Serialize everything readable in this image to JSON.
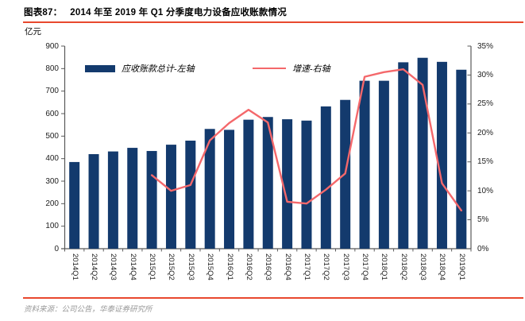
{
  "figure": {
    "label": "图表87：",
    "title": "2014 年至 2019 年 Q1 分季度电力设备应收账款情况",
    "unit_label": "亿元",
    "source": "资料来源：公司公告，华泰证券研究所",
    "accent_red": "#E8482E"
  },
  "chart_data": {
    "type": "bar",
    "subtype": "bar+line combo, dual axis",
    "title": "2014 年至 2019 年 Q1 分季度电力设备应收账款情况",
    "categories": [
      "2014Q1",
      "2014Q2",
      "2014Q3",
      "2014Q4",
      "2015Q1",
      "2015Q2",
      "2015Q3",
      "2015Q4",
      "2016Q1",
      "2016Q2",
      "2016Q3",
      "2016Q4",
      "2017Q1",
      "2017Q2",
      "2017Q3",
      "2017Q4",
      "2018Q1",
      "2018Q2",
      "2018Q3",
      "2018Q4",
      "2019Q1"
    ],
    "series": [
      {
        "name": "应收账款总计-左轴",
        "type": "bar",
        "axis": "left",
        "color": "#133A6D",
        "values": [
          385,
          420,
          432,
          448,
          434,
          462,
          480,
          532,
          528,
          573,
          585,
          575,
          569,
          632,
          661,
          746,
          746,
          828,
          848,
          830,
          795
        ]
      },
      {
        "name": "增速-右轴",
        "type": "line",
        "axis": "right",
        "color": "#F4686B",
        "values": [
          null,
          null,
          null,
          null,
          12.7,
          10.0,
          11.0,
          18.7,
          21.7,
          24.0,
          21.8,
          8.1,
          7.8,
          10.2,
          13.0,
          29.7,
          30.5,
          31.0,
          28.3,
          11.3,
          6.6
        ]
      }
    ],
    "left_axis": {
      "title": "亿元",
      "min": 0,
      "max": 900,
      "step": 100,
      "tick_labels": [
        "900",
        "800",
        "700",
        "600",
        "500",
        "400",
        "300",
        "200",
        "100",
        "0"
      ]
    },
    "right_axis": {
      "min": 0,
      "max": 35,
      "step": 5,
      "tick_labels": [
        "35%",
        "30%",
        "25%",
        "20%",
        "15%",
        "10%",
        "5%",
        "0%"
      ]
    },
    "legend_position": "top-center",
    "grid": false,
    "axis_color": "#595959"
  }
}
